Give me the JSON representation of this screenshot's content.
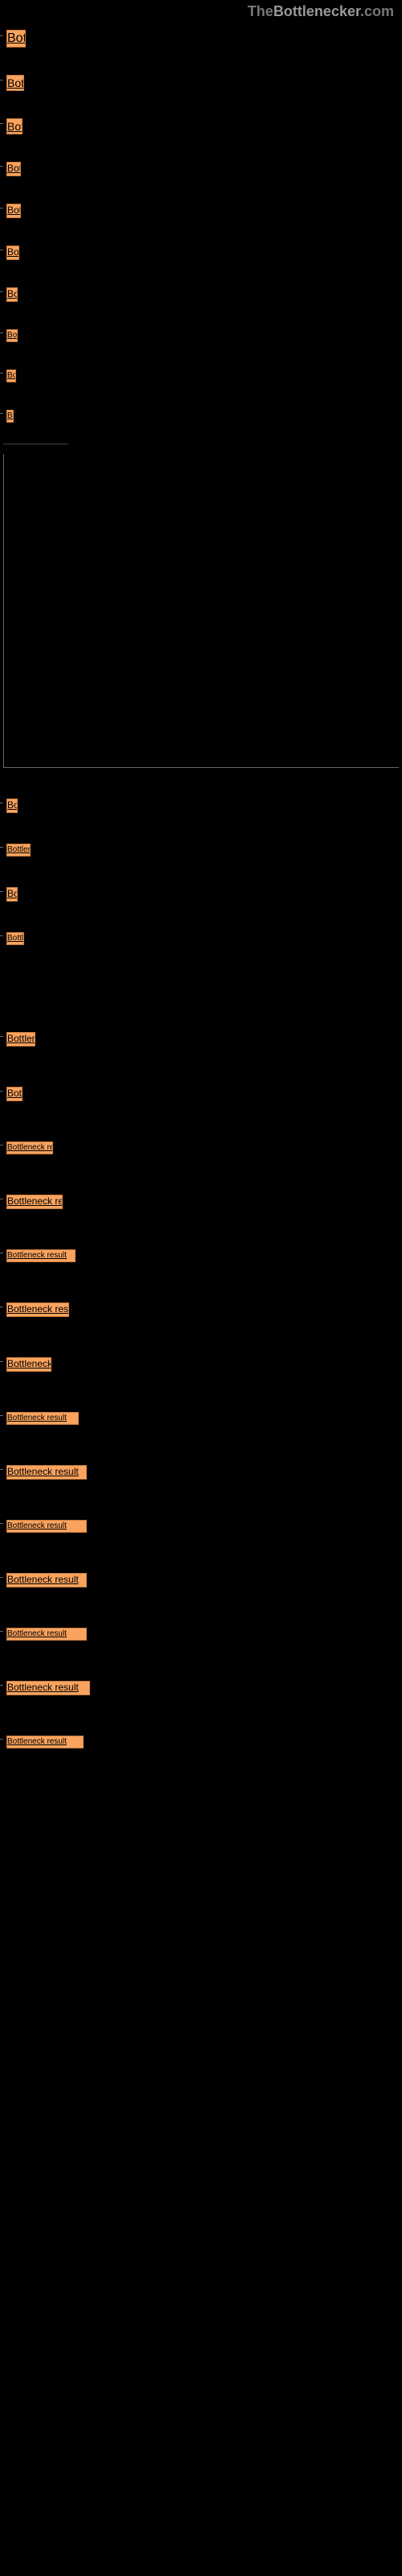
{
  "header": {
    "prefix": "The",
    "prefix_color": "#777",
    "main": "Bottlenecker",
    "main_color": "#999",
    "suffix": ".com",
    "suffix_color": "#777"
  },
  "item_base": {
    "label": "Bottleneck result",
    "bg": "#f9a35e",
    "border": "#c77b3b",
    "color": "#000"
  },
  "tick_color": "#666",
  "group1": [
    {
      "w": 24,
      "h": 22
    },
    {
      "w": 22,
      "h": 20
    },
    {
      "w": 20,
      "h": 20
    },
    {
      "w": 18,
      "h": 18
    },
    {
      "w": 18,
      "h": 18
    },
    {
      "w": 16,
      "h": 18
    },
    {
      "w": 14,
      "h": 18
    },
    {
      "w": 14,
      "h": 16
    },
    {
      "w": 12,
      "h": 16
    },
    {
      "w": 9,
      "h": 16
    }
  ],
  "group2": [
    {
      "w": 14,
      "h": 18
    },
    {
      "w": 30,
      "h": 16
    },
    {
      "w": 14,
      "h": 18
    },
    {
      "w": 22,
      "h": 16
    }
  ],
  "gap_after_group2": 70,
  "group3": [
    {
      "w": 36,
      "h": 18
    },
    {
      "w": 20,
      "h": 18
    },
    {
      "w": 58,
      "h": 16
    },
    {
      "w": 70,
      "h": 18
    },
    {
      "w": 86,
      "h": 16
    },
    {
      "w": 78,
      "h": 18
    },
    {
      "w": 56,
      "h": 18
    },
    {
      "w": 90,
      "h": 16
    },
    {
      "w": 100,
      "h": 18
    },
    {
      "w": 100,
      "h": 16
    },
    {
      "w": 100,
      "h": 18
    },
    {
      "w": 100,
      "h": 16
    },
    {
      "w": 104,
      "h": 18
    },
    {
      "w": 96,
      "h": 16
    }
  ],
  "group_spacing": {
    "g1": 26,
    "g2": 30,
    "g3": 42
  }
}
